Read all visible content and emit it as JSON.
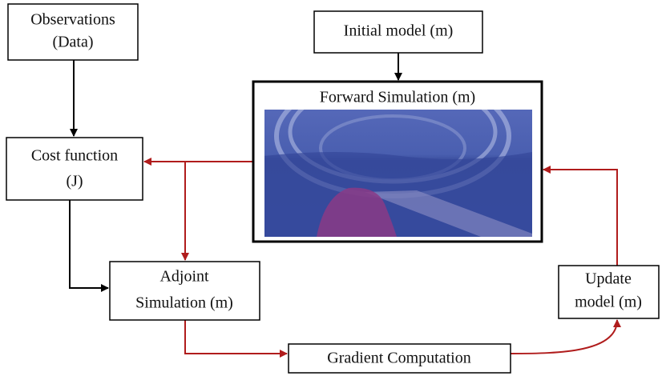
{
  "nodes": [
    {
      "lines": [
        "Observations",
        "(Data)"
      ]
    },
    {
      "lines": [
        "Initial model (m)"
      ]
    },
    {
      "lines": [
        "Forward Simulation (m)"
      ]
    },
    {
      "lines": [
        "Cost function",
        "(J)"
      ]
    },
    {
      "lines": [
        "Adjoint",
        "Simulation (m)"
      ]
    },
    {
      "lines": [
        "Gradient Computation"
      ]
    },
    {
      "lines": [
        "Update",
        "model (m)"
      ]
    }
  ]
}
